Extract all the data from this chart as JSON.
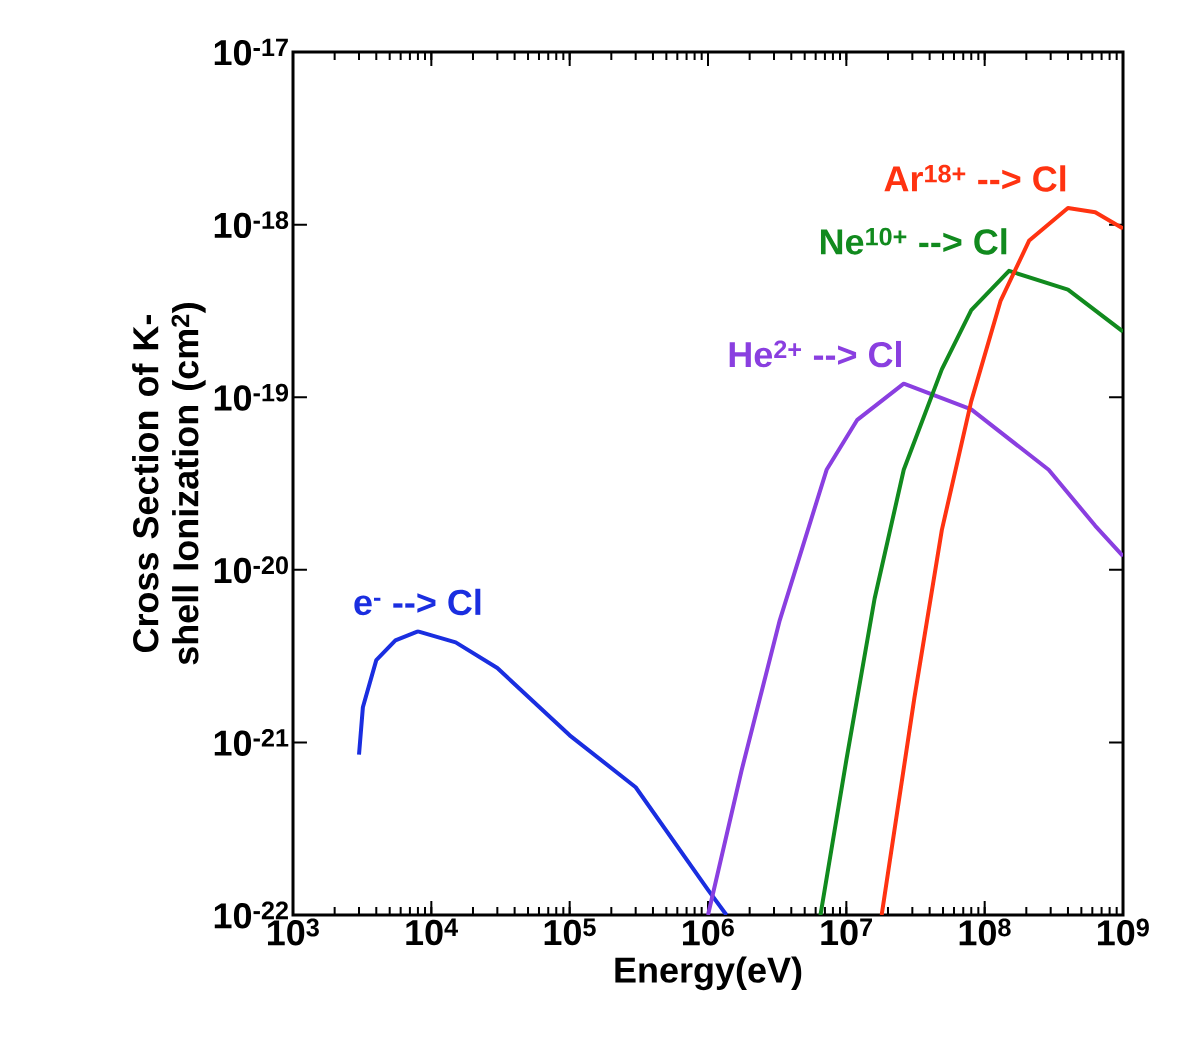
{
  "chart_data": {
    "type": "line",
    "xlabel": "Energy(eV)",
    "ylabel": "Cross Section of K-shell Ionization (cm$^{2}$)",
    "log": "xy",
    "grid": false,
    "legend": false,
    "xlim": [
      1000.0,
      1000000000.0
    ],
    "ylim": [
      1e-22,
      1e-17
    ],
    "xticks": [
      {
        "value": 1000.0,
        "label": "10$^{3}$"
      },
      {
        "value": 10000.0,
        "label": "10$^{4}$"
      },
      {
        "value": 100000.0,
        "label": "10$^{5}$"
      },
      {
        "value": 1000000.0,
        "label": "10$^{6}$"
      },
      {
        "value": 10000000.0,
        "label": "10$^{7}$"
      },
      {
        "value": 100000000.0,
        "label": "10$^{8}$"
      },
      {
        "value": 1000000000.0,
        "label": "10$^{9}$"
      }
    ],
    "yticks": [
      {
        "value": 1e-22,
        "label": "10$^{-22}$"
      },
      {
        "value": 1e-21,
        "label": "10$^{-21}$"
      },
      {
        "value": 1e-20,
        "label": "10$^{-20}$"
      },
      {
        "value": 1e-19,
        "label": "10$^{-19}$"
      },
      {
        "value": 1e-18,
        "label": "10$^{-18}$"
      },
      {
        "value": 1e-17,
        "label": "10$^{-17}$"
      }
    ],
    "series": [
      {
        "name": "e$^{-}$ --> Cl",
        "color": "#1a2ee0",
        "x": [
          3000.0,
          3200.0,
          4000.0,
          5500.0,
          8000.0,
          15000.0,
          30000.0,
          100000.0,
          300000.0,
          1000000.0,
          1360000.0
        ],
        "values": [
          8.5e-22,
          1.6e-21,
          3e-21,
          3.9e-21,
          4.4e-21,
          3.8e-21,
          2.7e-21,
          1.1e-21,
          5.5e-22,
          1.4e-22,
          1e-22
        ]
      },
      {
        "name": "He$^{2+}$ --> Cl",
        "color": "#8a3fe0",
        "x": [
          1000000.0,
          1750000.0,
          3300000.0,
          7200000.0,
          12000000.0,
          26000000.0,
          80000000.0,
          290000000.0,
          630000000.0,
          1000000000.0
        ],
        "values": [
          1e-22,
          6.9e-22,
          5.1e-21,
          3.8e-20,
          7.4e-20,
          1.2e-19,
          8.5e-20,
          3.8e-20,
          1.8e-20,
          1.2e-20
        ]
      },
      {
        "name": "Ne$^{10+}$ --> Cl",
        "color": "#118a1e",
        "x": [
          6500000.0,
          10000000.0,
          16000000.0,
          26000000.0,
          49000000.0,
          80000000.0,
          150000000.0,
          400000000.0,
          1000000000.0
        ],
        "values": [
          1e-22,
          7.9e-22,
          6.8e-21,
          3.8e-20,
          1.45e-19,
          3.2e-19,
          5.4e-19,
          4.2e-19,
          2.4e-19
        ]
      },
      {
        "name": "Ar$^{18+}$ --> Cl",
        "color": "#ff3311",
        "x": [
          18000000.0,
          31000000.0,
          49000000.0,
          80000000.0,
          130000000.0,
          210000000.0,
          400000000.0,
          630000000.0,
          1000000000.0
        ],
        "values": [
          1e-22,
          1.8e-21,
          1.7e-20,
          9.5e-20,
          3.6e-19,
          8.1e-19,
          1.25e-18,
          1.18e-18,
          9.5e-19
        ]
      }
    ]
  }
}
